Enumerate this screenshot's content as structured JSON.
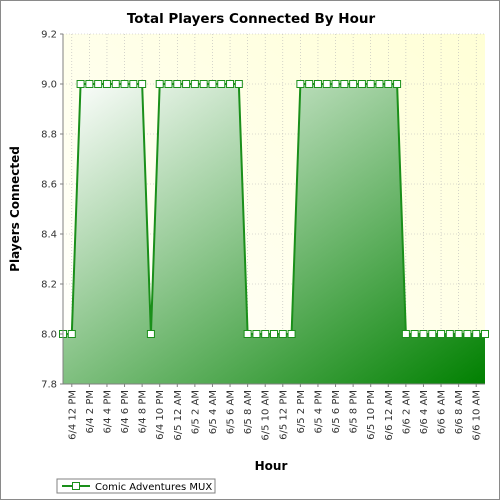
{
  "chart_data": {
    "type": "area",
    "title": "Total Players Connected By Hour",
    "xlabel": "Hour",
    "ylabel": "Players Connected",
    "ylim": [
      7.8,
      9.2
    ],
    "yticks": [
      "7.8",
      "8.0",
      "8.2",
      "8.4",
      "8.6",
      "8.8",
      "9.0",
      "9.2"
    ],
    "x_tick_labels": [
      "6/4 12 PM",
      "6/4 2 PM",
      "6/4 4 PM",
      "6/4 6 PM",
      "6/4 8 PM",
      "6/4 10 PM",
      "6/5 12 AM",
      "6/5 2 AM",
      "6/5 4 AM",
      "6/5 6 AM",
      "6/5 8 AM",
      "6/5 10 AM",
      "6/5 12 PM",
      "6/5 2 PM",
      "6/5 4 PM",
      "6/5 6 PM",
      "6/5 8 PM",
      "6/5 10 PM",
      "6/6 12 AM",
      "6/6 2 AM",
      "6/6 4 AM",
      "6/6 6 AM",
      "6/6 8 AM",
      "6/6 10 AM"
    ],
    "grid": true,
    "legend_position": "bottom-left",
    "series": [
      {
        "name": "Comic Adventures MUX",
        "color": "#008000",
        "points": [
          {
            "x": "6/4 11 AM",
            "y": 8.0
          },
          {
            "x": "6/4 12 PM",
            "y": 8.0
          },
          {
            "x": "6/4 1 PM",
            "y": 9.0
          },
          {
            "x": "6/4 2 PM",
            "y": 9.0
          },
          {
            "x": "6/4 3 PM",
            "y": 9.0
          },
          {
            "x": "6/4 4 PM",
            "y": 9.0
          },
          {
            "x": "6/4 5 PM",
            "y": 9.0
          },
          {
            "x": "6/4 6 PM",
            "y": 9.0
          },
          {
            "x": "6/4 7 PM",
            "y": 9.0
          },
          {
            "x": "6/4 8 PM",
            "y": 9.0
          },
          {
            "x": "6/4 9 PM",
            "y": 8.0
          },
          {
            "x": "6/4 10 PM",
            "y": 9.0
          },
          {
            "x": "6/4 11 PM",
            "y": 9.0
          },
          {
            "x": "6/5 12 AM",
            "y": 9.0
          },
          {
            "x": "6/5 1 AM",
            "y": 9.0
          },
          {
            "x": "6/5 2 AM",
            "y": 9.0
          },
          {
            "x": "6/5 3 AM",
            "y": 9.0
          },
          {
            "x": "6/5 4 AM",
            "y": 9.0
          },
          {
            "x": "6/5 5 AM",
            "y": 9.0
          },
          {
            "x": "6/5 6 AM",
            "y": 9.0
          },
          {
            "x": "6/5 7 AM",
            "y": 9.0
          },
          {
            "x": "6/5 8 AM",
            "y": 8.0
          },
          {
            "x": "6/5 9 AM",
            "y": 8.0
          },
          {
            "x": "6/5 10 AM",
            "y": 8.0
          },
          {
            "x": "6/5 11 AM",
            "y": 8.0
          },
          {
            "x": "6/5 12 PM",
            "y": 8.0
          },
          {
            "x": "6/5 1 PM",
            "y": 8.0
          },
          {
            "x": "6/5 2 PM",
            "y": 9.0
          },
          {
            "x": "6/5 3 PM",
            "y": 9.0
          },
          {
            "x": "6/5 4 PM",
            "y": 9.0
          },
          {
            "x": "6/5 5 PM",
            "y": 9.0
          },
          {
            "x": "6/5 6 PM",
            "y": 9.0
          },
          {
            "x": "6/5 7 PM",
            "y": 9.0
          },
          {
            "x": "6/5 8 PM",
            "y": 9.0
          },
          {
            "x": "6/5 9 PM",
            "y": 9.0
          },
          {
            "x": "6/5 10 PM",
            "y": 9.0
          },
          {
            "x": "6/5 11 PM",
            "y": 9.0
          },
          {
            "x": "6/6 12 AM",
            "y": 9.0
          },
          {
            "x": "6/6 1 AM",
            "y": 9.0
          },
          {
            "x": "6/6 2 AM",
            "y": 8.0
          },
          {
            "x": "6/6 3 AM",
            "y": 8.0
          },
          {
            "x": "6/6 4 AM",
            "y": 8.0
          },
          {
            "x": "6/6 5 AM",
            "y": 8.0
          },
          {
            "x": "6/6 6 AM",
            "y": 8.0
          },
          {
            "x": "6/6 7 AM",
            "y": 8.0
          },
          {
            "x": "6/6 8 AM",
            "y": 8.0
          },
          {
            "x": "6/6 9 AM",
            "y": 8.0
          },
          {
            "x": "6/6 10 AM",
            "y": 8.0
          },
          {
            "x": "6/6 11 AM",
            "y": 8.0
          }
        ]
      }
    ]
  }
}
